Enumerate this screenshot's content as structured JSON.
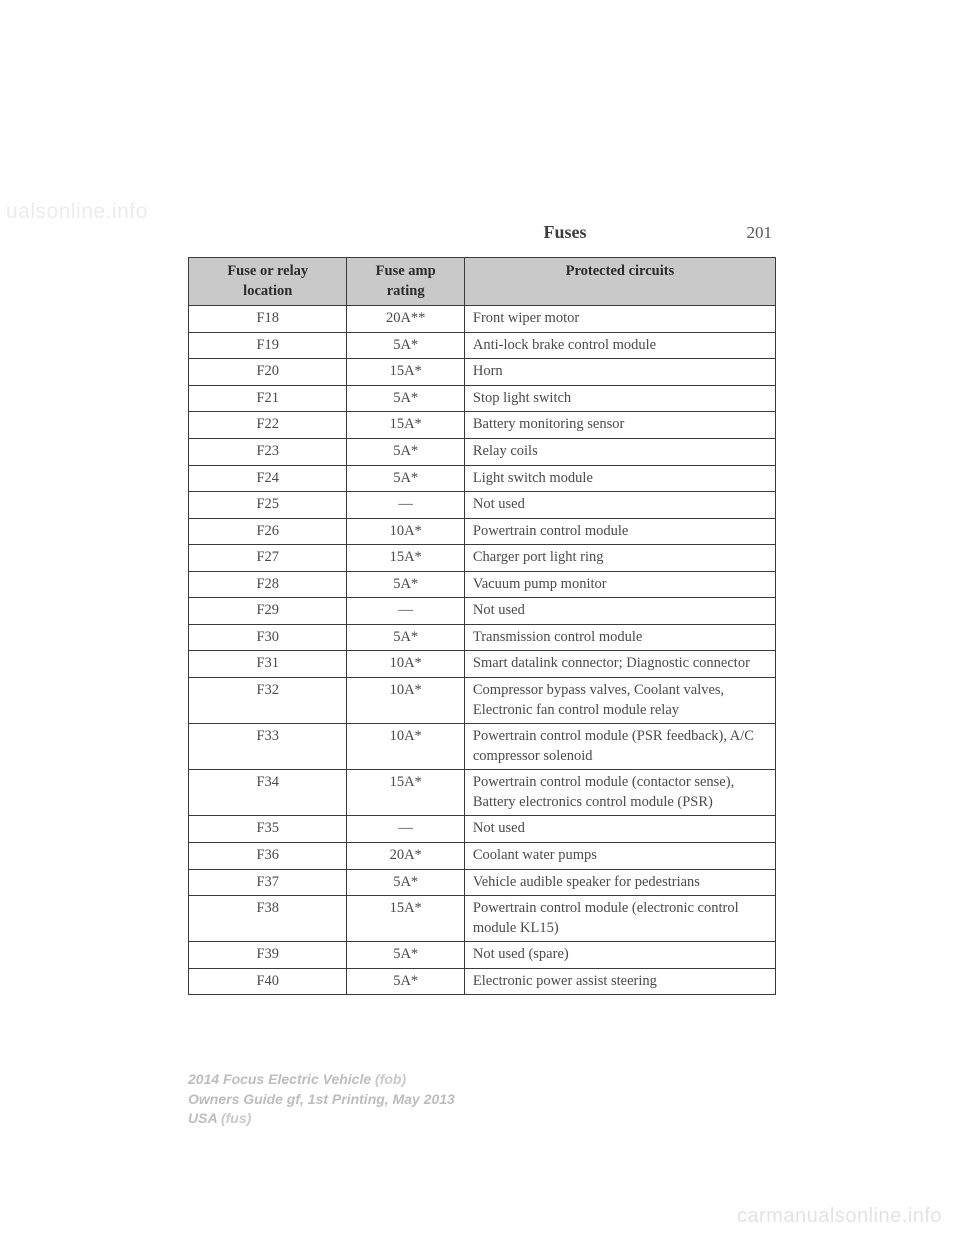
{
  "header": {
    "title": "Fuses",
    "page_number": "201"
  },
  "table": {
    "header_bg": "#c9c9c9",
    "border_color": "#3a3a3a",
    "columns": [
      "Fuse or relay location",
      "Fuse amp rating",
      "Protected circuits"
    ],
    "col_widths_pct": [
      27,
      20,
      53
    ],
    "rows": [
      {
        "loc": "F18",
        "amp": "20A**",
        "circ": "Front wiper motor"
      },
      {
        "loc": "F19",
        "amp": "5A*",
        "circ": "Anti-lock brake control module"
      },
      {
        "loc": "F20",
        "amp": "15A*",
        "circ": "Horn"
      },
      {
        "loc": "F21",
        "amp": "5A*",
        "circ": "Stop light switch"
      },
      {
        "loc": "F22",
        "amp": "15A*",
        "circ": "Battery monitoring sensor"
      },
      {
        "loc": "F23",
        "amp": "5A*",
        "circ": "Relay coils"
      },
      {
        "loc": "F24",
        "amp": "5A*",
        "circ": "Light switch module"
      },
      {
        "loc": "F25",
        "amp": "—",
        "circ": "Not used"
      },
      {
        "loc": "F26",
        "amp": "10A*",
        "circ": "Powertrain control module"
      },
      {
        "loc": "F27",
        "amp": "15A*",
        "circ": "Charger port light ring"
      },
      {
        "loc": "F28",
        "amp": "5A*",
        "circ": "Vacuum pump monitor"
      },
      {
        "loc": "F29",
        "amp": "—",
        "circ": "Not used"
      },
      {
        "loc": "F30",
        "amp": "5A*",
        "circ": "Transmission control module"
      },
      {
        "loc": "F31",
        "amp": "10A*",
        "circ": "Smart datalink connector; Diagnostic connector"
      },
      {
        "loc": "F32",
        "amp": "10A*",
        "circ": "Compressor bypass valves, Coolant valves, Electronic fan control module relay"
      },
      {
        "loc": "F33",
        "amp": "10A*",
        "circ": "Powertrain control module (PSR feedback), A/C compressor solenoid"
      },
      {
        "loc": "F34",
        "amp": "15A*",
        "circ": "Powertrain control module (contactor sense), Battery electronics control module (PSR)"
      },
      {
        "loc": "F35",
        "amp": "—",
        "circ": "Not used"
      },
      {
        "loc": "F36",
        "amp": "20A*",
        "circ": "Coolant water pumps"
      },
      {
        "loc": "F37",
        "amp": "5A*",
        "circ": "Vehicle audible speaker for pedestrians"
      },
      {
        "loc": "F38",
        "amp": "15A*",
        "circ": "Powertrain control module (electronic control module KL15)"
      },
      {
        "loc": "F39",
        "amp": "5A*",
        "circ": "Not used (spare)"
      },
      {
        "loc": "F40",
        "amp": "5A*",
        "circ": "Electronic power assist steering"
      }
    ]
  },
  "footer": {
    "line1a": "2014 Focus Electric Vehicle ",
    "line1b": "(fob)",
    "line2": "Owners Guide gf, 1st Printing, May 2013",
    "line3a": "USA ",
    "line3b": "(fus)"
  },
  "watermark": "carmanualsonline.info",
  "watermark_top": "ualsonline.info"
}
